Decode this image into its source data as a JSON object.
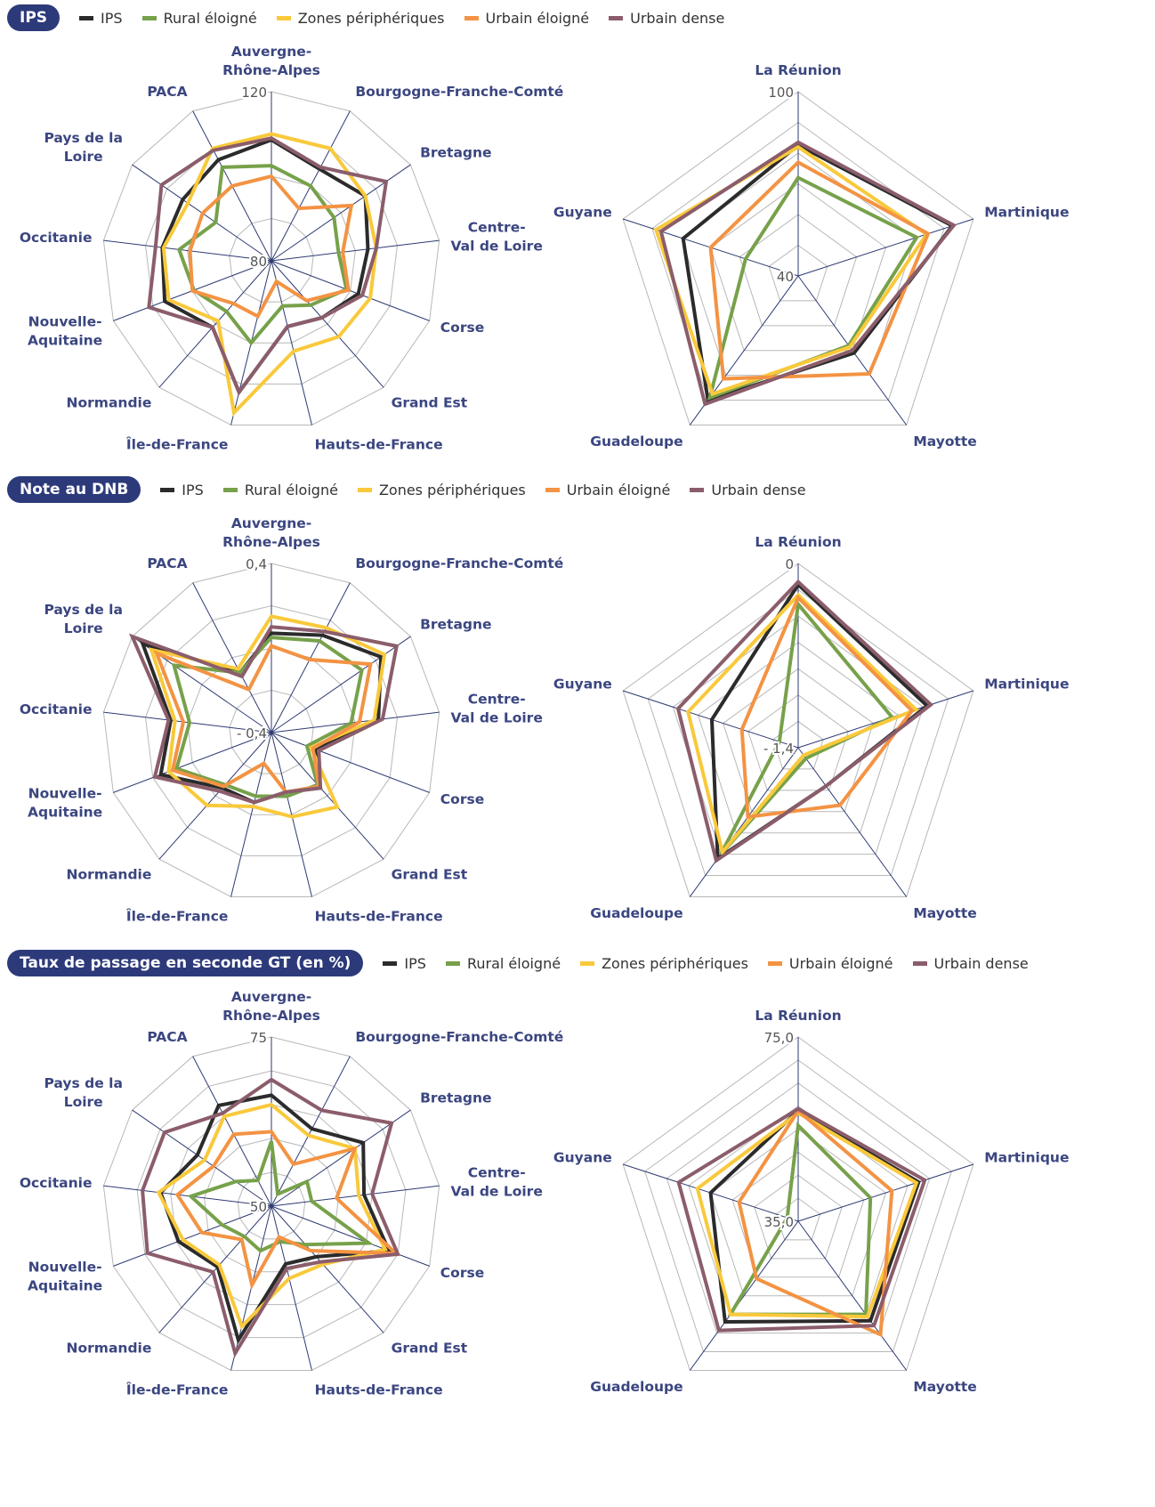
{
  "chart_data": [
    {
      "type": "radar",
      "title": "IPS",
      "series": [
        {
          "name": "IPS",
          "color": "#2b2b2b"
        },
        {
          "name": "Rural éloigné",
          "color": "#77a14a"
        },
        {
          "name": "Zones périphériques",
          "color": "#f9c93b"
        },
        {
          "name": "Urbain éloigné",
          "color": "#f39343"
        },
        {
          "name": "Urbain dense",
          "color": "#8b5d6b"
        }
      ],
      "panels": [
        {
          "categories": [
            "Auvergne-\nRhône-Alpes",
            "Bourgogne-Franche-Comté",
            "Bretagne",
            "Centre-\nVal de Loire",
            "Corse",
            "Grand Est",
            "Hauts-de-France",
            "Île-de-France",
            "Normandie",
            "Nouvelle-\nAquitaine",
            "Occitanie",
            "Pays de la\nLoire",
            "PACA"
          ],
          "ylim": [
            80,
            120
          ],
          "yticks": [
            80,
            120
          ],
          "grid": [
            80,
            90,
            100,
            110,
            120
          ],
          "values": [
            [
              108.6,
              104.5,
              107,
              103,
              102,
              98,
              96,
              112,
              101,
              107,
              106,
              105.5,
              107
            ],
            [
              102.5,
              100,
              98,
              96,
              99,
              94,
              91,
              100,
              96,
              99.6,
              102,
              96,
              105
            ],
            [
              110,
              110,
              107,
              105,
              105,
              104,
              102,
              117,
              99,
              106,
              105.7,
              104,
              110
            ],
            [
              100,
              94,
              103,
              97,
              99.5,
              92.6,
              85,
              93.5,
              93.5,
              100,
              99.4,
              99.8,
              100
            ],
            [
              109,
              105,
              113,
              105,
              103,
              98,
              96,
              112,
              101,
              111,
              107.6,
              111.6,
              109.5
            ]
          ]
        },
        {
          "categories": [
            "La Réunion",
            "Martinique",
            "Mayotte",
            "Guadeloupe",
            "Guyane"
          ],
          "ylim": [
            40,
            100
          ],
          "yticks": [
            40,
            100
          ],
          "grid": [
            40,
            50,
            60,
            70,
            80,
            90,
            100
          ],
          "values": [
            [
              82.6,
              92.8,
              71,
              90,
              79.4
            ],
            [
              72,
              80.6,
              68,
              89,
              58
            ],
            [
              82,
              84,
              68.6,
              87.5,
              88.7
            ],
            [
              77,
              84.5,
              79.4,
              81.4,
              70
            ],
            [
              83.5,
              93.3,
              70,
              91.6,
              87
            ]
          ]
        }
      ]
    },
    {
      "type": "radar",
      "title": "Note au DNB",
      "series": [
        {
          "name": "IPS",
          "color": "#2b2b2b"
        },
        {
          "name": "Rural éloigné",
          "color": "#77a14a"
        },
        {
          "name": "Zones périphériques",
          "color": "#f9c93b"
        },
        {
          "name": "Urbain éloigné",
          "color": "#f39343"
        },
        {
          "name": "Urbain dense",
          "color": "#8b5d6b"
        }
      ],
      "panels": [
        {
          "categories": [
            "Auvergne-\nRhône-Alpes",
            "Bourgogne-Franche-Comté",
            "Bretagne",
            "Centre-\nVal de Loire",
            "Corse",
            "Grand Est",
            "Hauts-de-France",
            "Île-de-France",
            "Normandie",
            "Nouvelle-\nAquitaine",
            "Occitanie",
            "Pays de la\nLoire",
            "PACA"
          ],
          "ylim": [
            -0.4,
            0.4
          ],
          "yticks": [
            {
              "value": -0.4,
              "label": "- 0,4"
            },
            {
              "value": 0.4,
              "label": "0,4"
            }
          ],
          "grid": [
            -0.4,
            -0.2,
            0,
            0.2,
            0.4
          ],
          "values": [
            [
              0.07,
              0.12,
              0.23,
              0.11,
              -0.18,
              -0.05,
              -0.11,
              -0.06,
              -0.05,
              0.16,
              0.08,
              0.34,
              -0.08
            ],
            [
              0.05,
              0.09,
              0.12,
              -0.02,
              -0.22,
              -0.07,
              -0.09,
              -0.09,
              -0.07,
              0.08,
              -0.01,
              0.16,
              -0.08
            ],
            [
              0.15,
              0.16,
              0.25,
              0.09,
              -0.2,
              0.07,
              0.01,
              -0.04,
              0.06,
              0.12,
              0.06,
              0.29,
              -0.06
            ],
            [
              0.01,
              -0.01,
              0.17,
              0.02,
              -0.19,
              -0.06,
              -0.11,
              -0.25,
              -0.06,
              0.1,
              0.02,
              0.26,
              -0.17
            ],
            [
              0.1,
              0.14,
              0.32,
              0.13,
              -0.16,
              -0.05,
              -0.11,
              -0.06,
              -0.03,
              0.19,
              0.09,
              0.4,
              -0.1
            ]
          ]
        },
        {
          "categories": [
            "La Réunion",
            "Martinique",
            "Mayotte",
            "Guadeloupe",
            "Guyane"
          ],
          "ylim": [
            -1.4,
            0
          ],
          "yticks": [
            {
              "value": -1.4,
              "label": "- 1,4"
            },
            0
          ],
          "grid": [
            -1.4,
            -1.2,
            -1,
            -0.8,
            -0.6,
            -0.4,
            -0.2,
            0
          ],
          "values": [
            [
              -0.16,
              -0.37,
              -1.04,
              -0.36,
              -0.71
            ],
            [
              -0.31,
              -0.65,
              -1.3,
              -0.4,
              -1.25
            ],
            [
              -0.24,
              -0.46,
              -1.33,
              -0.42,
              -0.52
            ],
            [
              -0.26,
              -0.49,
              -0.86,
              -0.75,
              -0.95
            ],
            [
              -0.14,
              -0.34,
              -1.04,
              -0.34,
              -0.44
            ]
          ]
        }
      ]
    },
    {
      "type": "radar",
      "title": "Taux de passage en seconde GT (en %)",
      "series": [
        {
          "name": "IPS",
          "color": "#2b2b2b"
        },
        {
          "name": "Rural éloigné",
          "color": "#77a14a"
        },
        {
          "name": "Zones périphériques",
          "color": "#f9c93b"
        },
        {
          "name": "Urbain éloigné",
          "color": "#f39343"
        },
        {
          "name": "Urbain dense",
          "color": "#8b5d6b"
        }
      ],
      "panels": [
        {
          "categories": [
            "Auvergne-\nRhône-Alpes",
            "Bourgogne-Franche-Comté",
            "Bretagne",
            "Centre-\nVal de Loire",
            "Corse",
            "Grand Est",
            "Hauts-de-France",
            "Île-de-France",
            "Normandie",
            "Nouvelle-\nAquitaine",
            "Occitanie",
            "Pays de la\nLoire",
            "PACA"
          ],
          "ylim": [
            50,
            75
          ],
          "yticks": [
            50,
            75
          ],
          "grid": [
            50,
            55,
            60,
            65,
            70,
            75
          ],
          "values": [
            [
              66.4,
              62.9,
              66.5,
              63.8,
              68.6,
              60,
              58.8,
              70.4,
              62,
              64.7,
              66.5,
              63.3,
              66.8
            ],
            [
              59.6,
              52,
              56.4,
              56,
              65.4,
              57.6,
              55.4,
              56.8,
              56,
              57.8,
              62,
              56.4,
              54.3
            ],
            [
              65,
              61.8,
              65,
              63,
              68,
              61.5,
              61,
              68.3,
              61.6,
              64,
              66.8,
              62,
              65
            ],
            [
              61,
              57,
              65,
              59.7,
              69.7,
              58.8,
              54.7,
              62,
              56.6,
              61,
              64,
              60.4,
              62
            ],
            [
              68.7,
              66,
              71.6,
              65,
              70,
              61,
              59.5,
              72.4,
              63,
              69.6,
              69.2,
              69.2,
              65.5
            ]
          ]
        },
        {
          "categories": [
            "La Réunion",
            "Martinique",
            "Mayotte",
            "Guadeloupe",
            "Guyane"
          ],
          "ylim": [
            35,
            75
          ],
          "yticks": [
            {
              "value": 35,
              "label": "35,0"
            },
            {
              "value": 75,
              "label": "75,0"
            }
          ],
          "grid": [
            35,
            40,
            45,
            50,
            55,
            60,
            65,
            70,
            75
          ],
          "values": [
            [
              59,
              62.5,
              61.7,
              62,
              55
            ],
            [
              55.8,
              51.5,
              60,
              60,
              37.5
            ],
            [
              58.5,
              62,
              60.6,
              60,
              58
            ],
            [
              59,
              56.4,
              65.4,
              50.4,
              48.5
            ],
            [
              59.4,
              63.9,
              63,
              64.3,
              62.3
            ]
          ]
        }
      ]
    }
  ]
}
